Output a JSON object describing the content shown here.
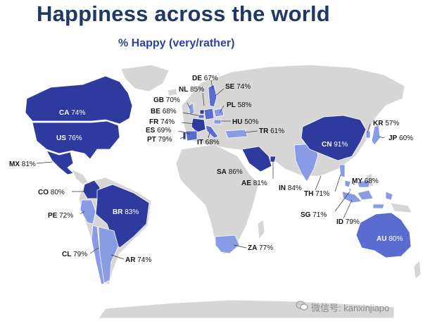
{
  "title": "Happiness across the world",
  "subtitle": "% Happy (very/rather)",
  "watermark": "微信号: kanxinjiapo",
  "icons": {
    "watermark": "wechat-icon"
  },
  "colors": {
    "background": "#ffffff",
    "land": "#d6d6d6",
    "high": "#2e3a9e",
    "medium": "#5a6ccf",
    "low": "#8a9be6",
    "title": "#1f3864",
    "subtitle": "#2e3fa6"
  },
  "countries": [
    {
      "code": "CA",
      "value": "74%"
    },
    {
      "code": "US",
      "value": "76%"
    },
    {
      "code": "MX",
      "value": "81%"
    },
    {
      "code": "CO",
      "value": "80%"
    },
    {
      "code": "PE",
      "value": "72%"
    },
    {
      "code": "BR",
      "value": "83%"
    },
    {
      "code": "CL",
      "value": "79%"
    },
    {
      "code": "AR",
      "value": "74%"
    },
    {
      "code": "DE",
      "value": "67%"
    },
    {
      "code": "NL",
      "value": "85%"
    },
    {
      "code": "SE",
      "value": "74%"
    },
    {
      "code": "GB",
      "value": "70%"
    },
    {
      "code": "BE",
      "value": "68%"
    },
    {
      "code": "PL",
      "value": "58%"
    },
    {
      "code": "FR",
      "value": "74%"
    },
    {
      "code": "HU",
      "value": "50%"
    },
    {
      "code": "ES",
      "value": "69%"
    },
    {
      "code": "PT",
      "value": "79%"
    },
    {
      "code": "TR",
      "value": "61%"
    },
    {
      "code": "IT",
      "value": "68%"
    },
    {
      "code": "SA",
      "value": "86%"
    },
    {
      "code": "AE",
      "value": "81%"
    },
    {
      "code": "IN",
      "value": "84%"
    },
    {
      "code": "TH",
      "value": "71%"
    },
    {
      "code": "CN",
      "value": "91%"
    },
    {
      "code": "KR",
      "value": "57%"
    },
    {
      "code": "JP",
      "value": "60%"
    },
    {
      "code": "MY",
      "value": "68%"
    },
    {
      "code": "SG",
      "value": "71%"
    },
    {
      "code": "ID",
      "value": "79%"
    },
    {
      "code": "ZA",
      "value": "77%"
    },
    {
      "code": "AU",
      "value": "80%"
    }
  ]
}
